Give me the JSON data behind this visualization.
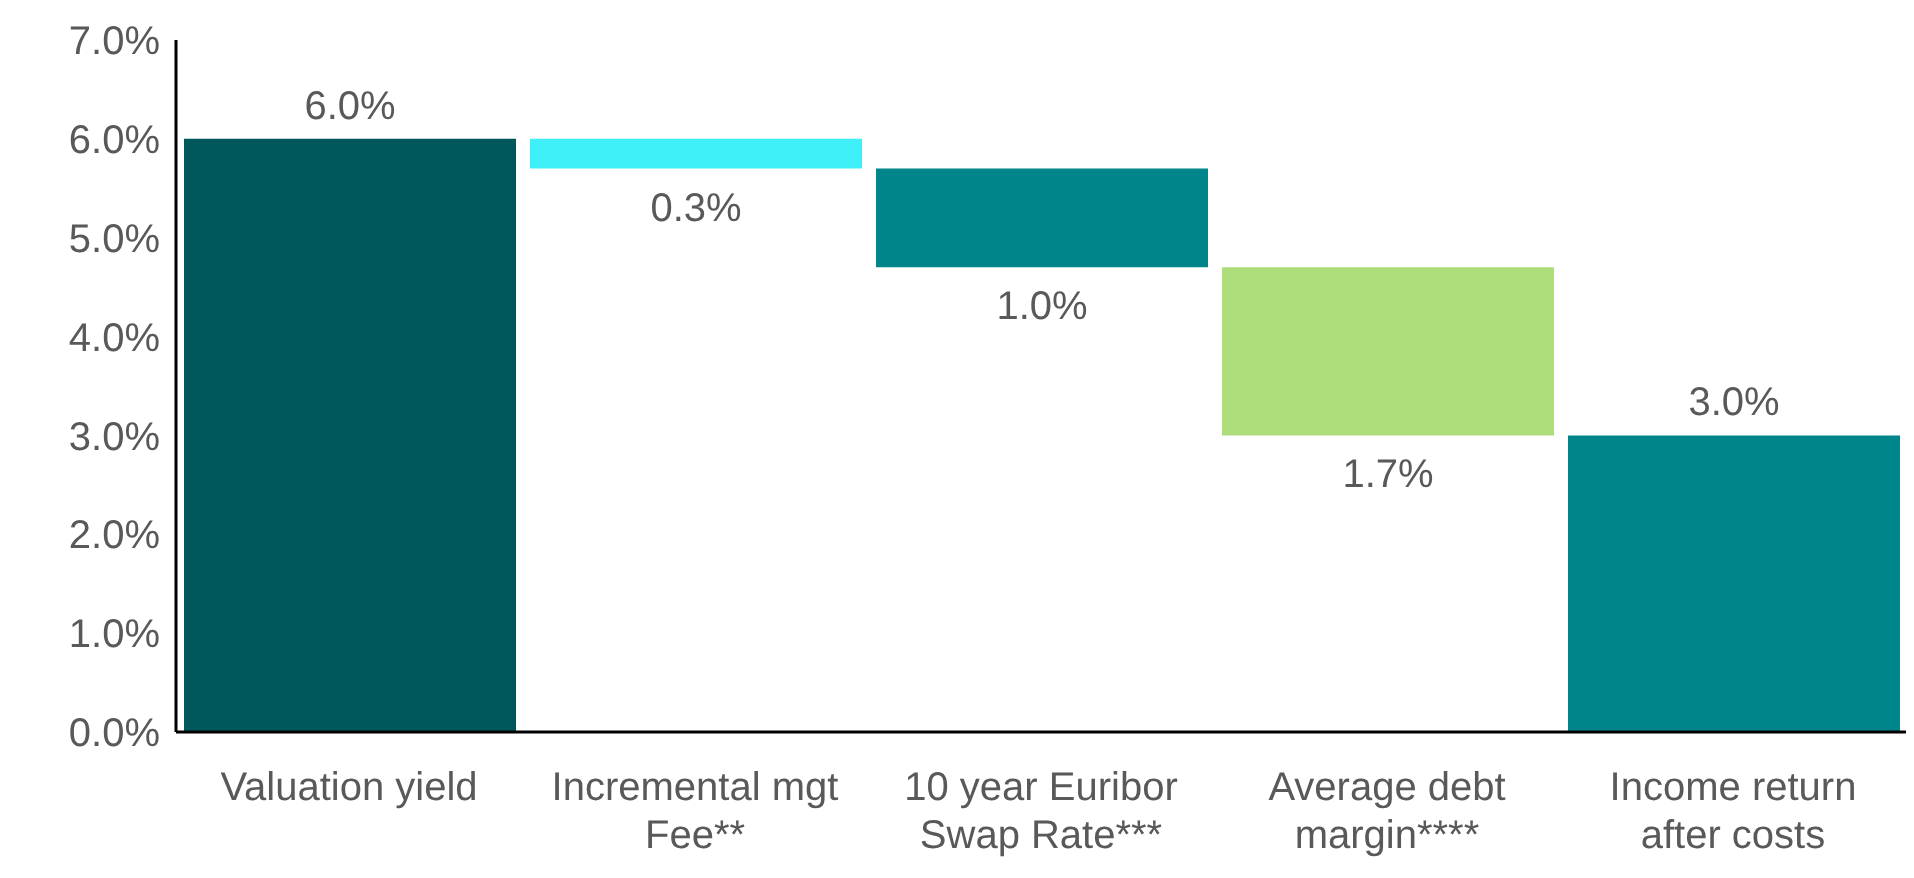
{
  "chart_data": {
    "type": "bar",
    "categories": [
      "Valuation yield",
      "Incremental mgt Fee**",
      "10 year Euribor Swap Rate***",
      "Average debt margin****",
      "Income return after costs"
    ],
    "values": [
      6.0,
      0.3,
      1.0,
      1.7,
      3.0
    ],
    "base": [
      0,
      5.7,
      4.7,
      3.0,
      0
    ],
    "colors": [
      "#00585a",
      "#40f0f8",
      "#00868a",
      "#addc7a",
      "#00868a"
    ],
    "value_labels": [
      "6.0%",
      "0.3%",
      "1.0%",
      "1.7%",
      "3.0%"
    ],
    "ylim": [
      0,
      7
    ],
    "yticks": [
      {
        "value": 0,
        "label": "0.0%"
      },
      {
        "value": 1,
        "label": "1.0%"
      },
      {
        "value": 2,
        "label": "2.0%"
      },
      {
        "value": 3,
        "label": "3.0%"
      },
      {
        "value": 4,
        "label": "4.0%"
      },
      {
        "value": 5,
        "label": "5.0%"
      },
      {
        "value": 6,
        "label": "6.0%"
      },
      {
        "value": 7,
        "label": "7.0%"
      }
    ],
    "grid": false,
    "legend": false
  }
}
